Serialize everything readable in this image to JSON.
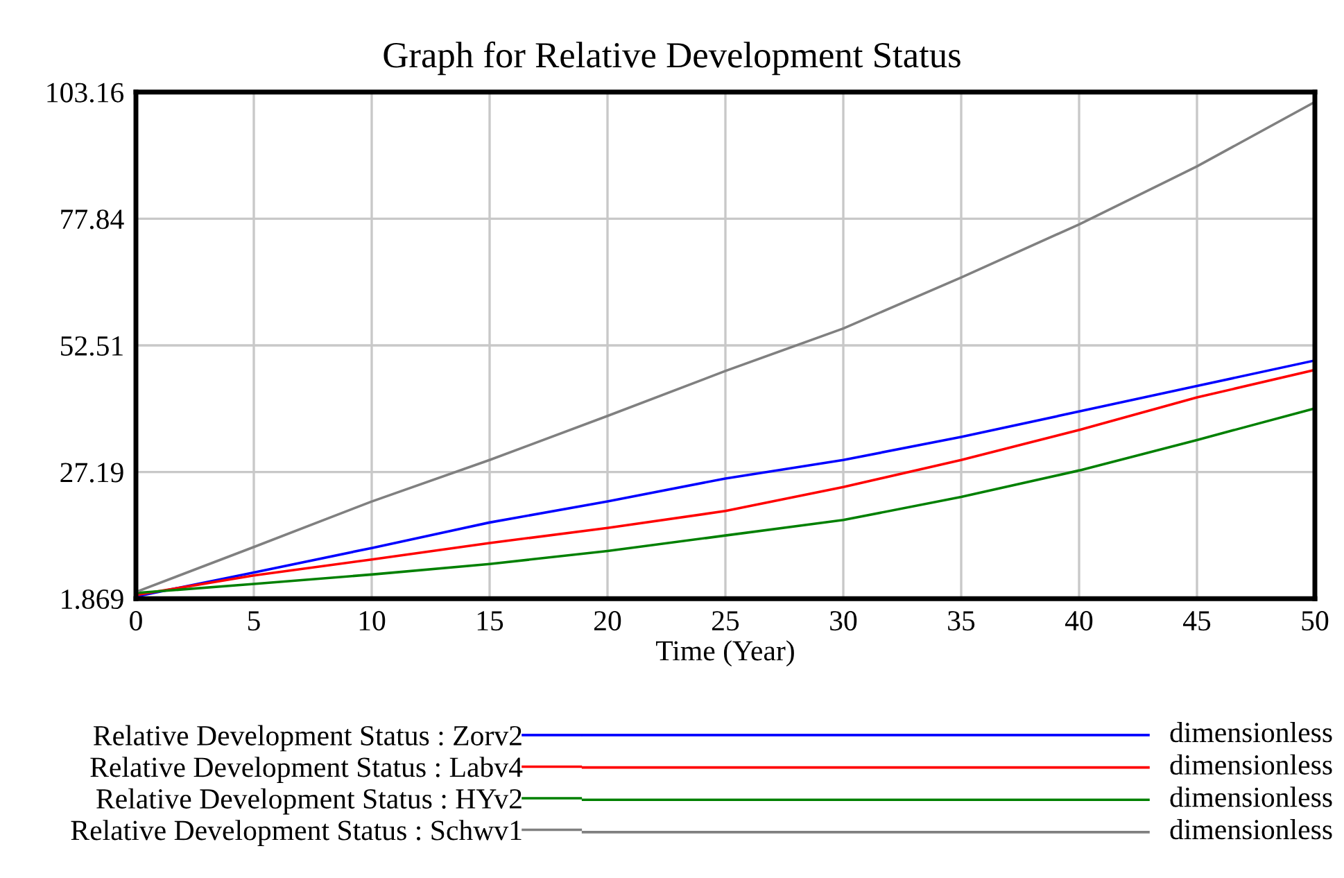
{
  "chart_data": {
    "type": "line",
    "title": "Graph for Relative Development Status",
    "xlabel": "Time (Year)",
    "x": [
      0,
      5,
      10,
      15,
      20,
      25,
      30,
      35,
      40,
      45,
      50
    ],
    "series": [
      {
        "name": "Relative Development Status : Zorv2",
        "color": "#0000ff",
        "values": [
          2.3,
          7.1,
          12.0,
          17.1,
          21.3,
          25.9,
          29.6,
          34.2,
          39.3,
          44.4,
          49.5
        ]
      },
      {
        "name": "Relative Development Status : Labv4",
        "color": "#ff0000",
        "values": [
          2.6,
          6.5,
          9.7,
          13.0,
          16.0,
          19.4,
          24.2,
          29.6,
          35.6,
          42.1,
          47.6
        ]
      },
      {
        "name": "Relative Development Status : HYv2",
        "color": "#008000",
        "values": [
          3.0,
          4.8,
          6.7,
          8.8,
          11.4,
          14.5,
          17.6,
          22.2,
          27.5,
          33.6,
          39.9
        ]
      },
      {
        "name": "Relative Development Status : Schwv1",
        "color": "#808080",
        "values": [
          3.2,
          12.2,
          21.3,
          29.6,
          38.4,
          47.4,
          55.9,
          66.1,
          76.7,
          88.3,
          101.2
        ]
      }
    ],
    "xlim": [
      0,
      50
    ],
    "xticks": [
      0,
      5,
      10,
      15,
      20,
      25,
      30,
      35,
      40,
      45,
      50
    ],
    "ylim": [
      1.869,
      103.16
    ],
    "yticks": [
      1.869,
      27.19,
      52.51,
      77.84,
      103.16
    ],
    "grid": true,
    "legend": "bottom",
    "line_style": "solid",
    "annotations": [
      "dimensionless",
      "dimensionless",
      "dimensionless",
      "dimensionless"
    ]
  }
}
